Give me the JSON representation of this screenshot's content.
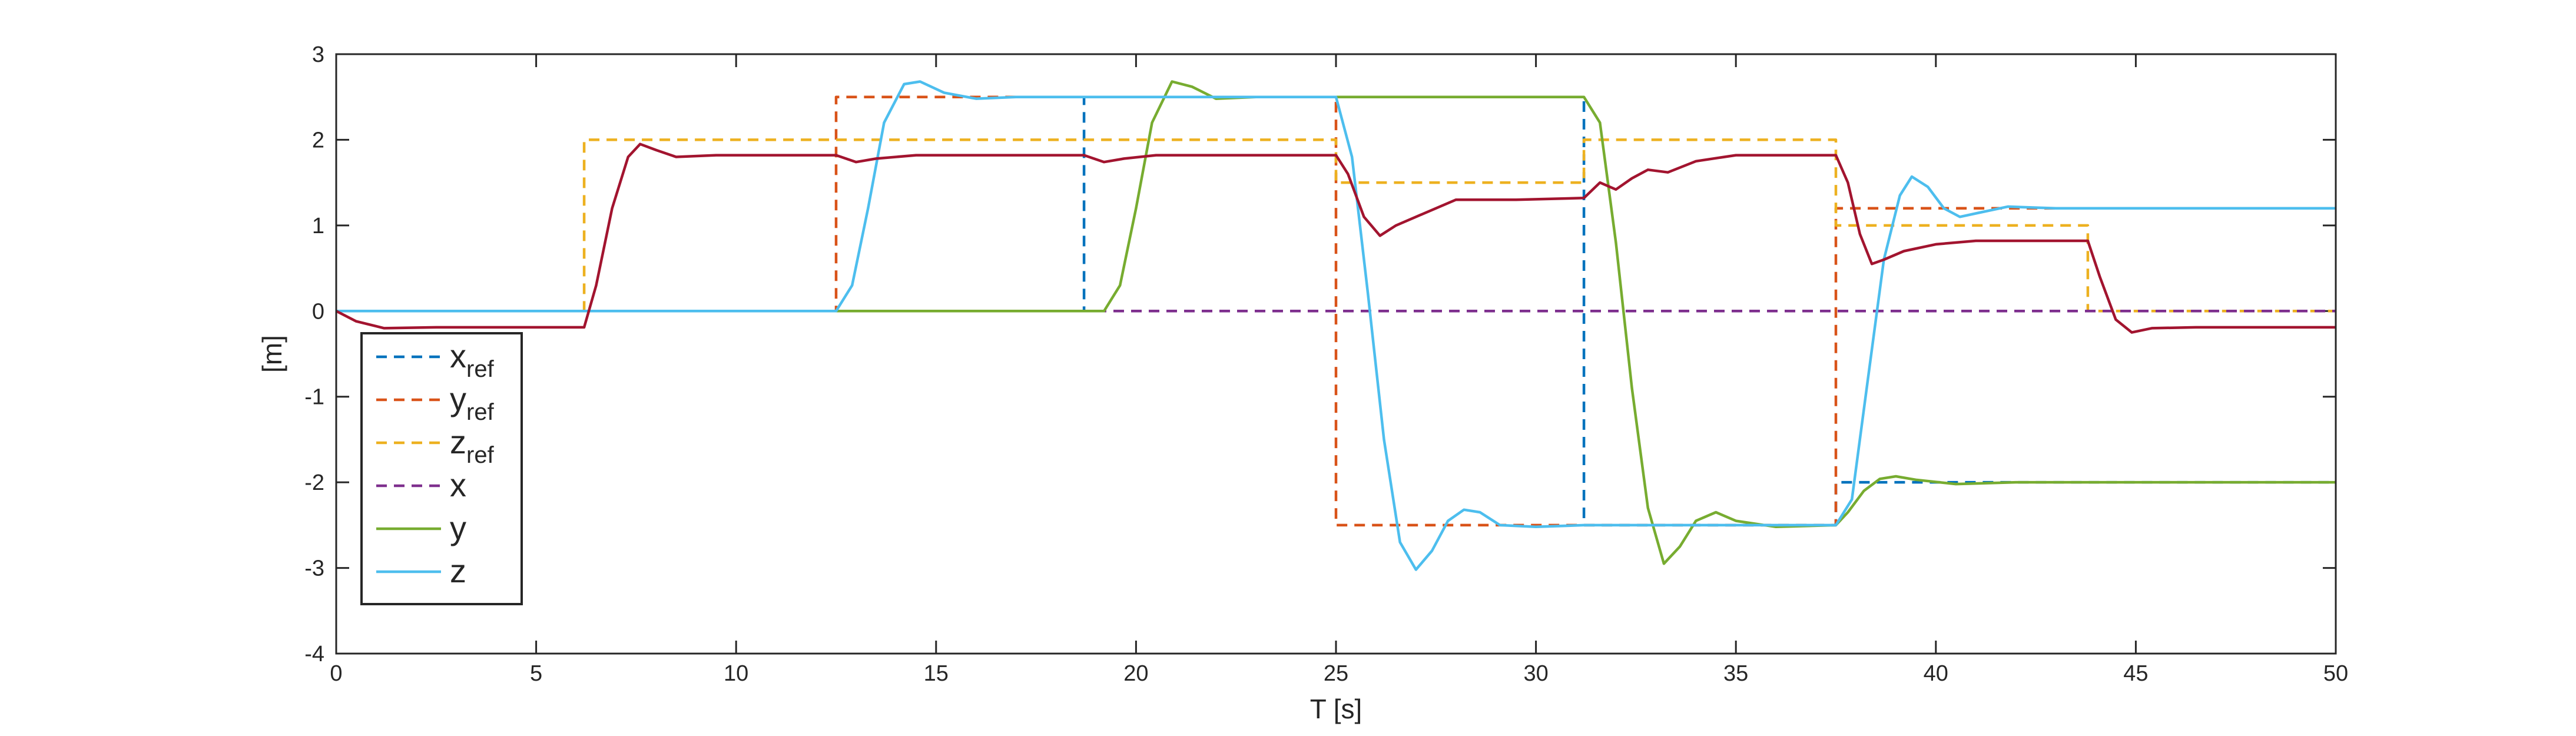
{
  "chart_data": {
    "type": "line",
    "title": "",
    "xlabel": "T [s]",
    "ylabel": "[m]",
    "xlim": [
      0,
      50
    ],
    "ylim": [
      -4,
      3
    ],
    "xticks": [
      0,
      5,
      10,
      15,
      20,
      25,
      30,
      35,
      40,
      45,
      50
    ],
    "yticks": [
      -4,
      -3,
      -2,
      -1,
      0,
      1,
      2,
      3
    ],
    "grid": false,
    "legend_placement": "lower-left",
    "legend": [
      {
        "base": "x",
        "sub": "ref",
        "color": "#0072BD",
        "dash": true
      },
      {
        "base": "y",
        "sub": "ref",
        "color": "#D95319",
        "dash": true
      },
      {
        "base": "z",
        "sub": "ref",
        "color": "#EDB120",
        "dash": true
      },
      {
        "base": "x",
        "sub": "",
        "color": "#7E2F8E",
        "dash": true
      },
      {
        "base": "y",
        "sub": "",
        "color": "#77AC30",
        "dash": false
      },
      {
        "base": "z",
        "sub": "",
        "color": "#4DBEEE",
        "dash": false
      }
    ],
    "series": [
      {
        "name": "x_ref",
        "color": "#0072BD",
        "dash": true,
        "points": [
          [
            0,
            0
          ],
          [
            18.7,
            0
          ],
          [
            18.7,
            2.5
          ],
          [
            25,
            2.5
          ],
          [
            31.2,
            2.5
          ],
          [
            31.2,
            -2.5
          ],
          [
            37.5,
            -2.5
          ],
          [
            37.5,
            -2.0
          ],
          [
            50,
            -2.0
          ]
        ]
      },
      {
        "name": "y_ref",
        "color": "#D95319",
        "dash": true,
        "points": [
          [
            0,
            0
          ],
          [
            12.5,
            0
          ],
          [
            12.5,
            2.5
          ],
          [
            25,
            2.5
          ],
          [
            25,
            -2.5
          ],
          [
            37.5,
            -2.5
          ],
          [
            37.5,
            1.2
          ],
          [
            50,
            1.2
          ]
        ]
      },
      {
        "name": "z_ref",
        "color": "#EDB120",
        "dash": true,
        "points": [
          [
            0,
            0
          ],
          [
            6.2,
            0
          ],
          [
            6.2,
            2.0
          ],
          [
            25,
            2.0
          ],
          [
            25,
            1.5
          ],
          [
            31.2,
            1.5
          ],
          [
            31.2,
            2.0
          ],
          [
            37.5,
            2.0
          ],
          [
            37.5,
            1.0
          ],
          [
            43.8,
            1.0
          ],
          [
            43.8,
            0
          ],
          [
            50,
            0
          ]
        ]
      },
      {
        "name": "x",
        "color": "#7E2F8E",
        "dash": true,
        "points": [
          [
            0,
            0
          ],
          [
            50,
            0
          ]
        ]
      },
      {
        "name": "y",
        "color": "#77AC30",
        "dash": false,
        "points": [
          [
            0,
            0
          ],
          [
            19.2,
            0
          ],
          [
            19.6,
            0.3
          ],
          [
            20.0,
            1.2
          ],
          [
            20.4,
            2.2
          ],
          [
            20.9,
            2.68
          ],
          [
            21.4,
            2.62
          ],
          [
            22,
            2.48
          ],
          [
            23,
            2.5
          ],
          [
            25,
            2.5
          ],
          [
            31.2,
            2.5
          ],
          [
            31.6,
            2.2
          ],
          [
            32.0,
            0.8
          ],
          [
            32.4,
            -0.9
          ],
          [
            32.8,
            -2.3
          ],
          [
            33.2,
            -2.95
          ],
          [
            33.6,
            -2.75
          ],
          [
            34.0,
            -2.45
          ],
          [
            34.5,
            -2.35
          ],
          [
            35,
            -2.45
          ],
          [
            36,
            -2.52
          ],
          [
            37.5,
            -2.5
          ],
          [
            37.8,
            -2.35
          ],
          [
            38.2,
            -2.1
          ],
          [
            38.6,
            -1.96
          ],
          [
            39.0,
            -1.93
          ],
          [
            39.5,
            -1.97
          ],
          [
            40.5,
            -2.02
          ],
          [
            42,
            -2.0
          ],
          [
            50,
            -2.0
          ]
        ]
      },
      {
        "name": "z",
        "color": "#4DBEEE",
        "dash": false,
        "points": [
          [
            0,
            0
          ],
          [
            12.5,
            0
          ],
          [
            12.9,
            0.3
          ],
          [
            13.3,
            1.2
          ],
          [
            13.7,
            2.2
          ],
          [
            14.2,
            2.65
          ],
          [
            14.6,
            2.68
          ],
          [
            15.2,
            2.55
          ],
          [
            16,
            2.48
          ],
          [
            17,
            2.5
          ],
          [
            25,
            2.5
          ],
          [
            25.4,
            1.8
          ],
          [
            25.8,
            0.2
          ],
          [
            26.2,
            -1.5
          ],
          [
            26.6,
            -2.7
          ],
          [
            27.0,
            -3.02
          ],
          [
            27.4,
            -2.8
          ],
          [
            27.8,
            -2.45
          ],
          [
            28.2,
            -2.32
          ],
          [
            28.6,
            -2.35
          ],
          [
            29.1,
            -2.5
          ],
          [
            30,
            -2.52
          ],
          [
            31.2,
            -2.5
          ],
          [
            37.5,
            -2.5
          ],
          [
            37.9,
            -2.2
          ],
          [
            38.3,
            -0.8
          ],
          [
            38.7,
            0.6
          ],
          [
            39.1,
            1.35
          ],
          [
            39.4,
            1.57
          ],
          [
            39.8,
            1.45
          ],
          [
            40.2,
            1.2
          ],
          [
            40.6,
            1.1
          ],
          [
            41.1,
            1.15
          ],
          [
            41.8,
            1.22
          ],
          [
            43,
            1.2
          ],
          [
            50,
            1.2
          ]
        ]
      },
      {
        "name": "x_actual",
        "color": "#A2142F",
        "dash": false,
        "points": [
          [
            0,
            0
          ],
          [
            0.5,
            -0.12
          ],
          [
            1.2,
            -0.2
          ],
          [
            2.5,
            -0.19
          ],
          [
            6.2,
            -0.19
          ],
          [
            6.5,
            0.3
          ],
          [
            6.9,
            1.2
          ],
          [
            7.3,
            1.8
          ],
          [
            7.6,
            1.95
          ],
          [
            8.0,
            1.88
          ],
          [
            8.5,
            1.8
          ],
          [
            9.5,
            1.82
          ],
          [
            11,
            1.82
          ],
          [
            12.5,
            1.82
          ],
          [
            13,
            1.74
          ],
          [
            13.5,
            1.78
          ],
          [
            14.5,
            1.82
          ],
          [
            18.7,
            1.82
          ],
          [
            19.2,
            1.74
          ],
          [
            19.7,
            1.78
          ],
          [
            20.5,
            1.82
          ],
          [
            25,
            1.82
          ],
          [
            25.3,
            1.6
          ],
          [
            25.7,
            1.1
          ],
          [
            26.1,
            0.88
          ],
          [
            26.5,
            1.0
          ],
          [
            27,
            1.1
          ],
          [
            28,
            1.3
          ],
          [
            29.5,
            1.3
          ],
          [
            31.2,
            1.32
          ],
          [
            31.6,
            1.5
          ],
          [
            32.0,
            1.42
          ],
          [
            32.4,
            1.55
          ],
          [
            32.8,
            1.65
          ],
          [
            33.3,
            1.62
          ],
          [
            34,
            1.75
          ],
          [
            35,
            1.82
          ],
          [
            37.5,
            1.82
          ],
          [
            37.8,
            1.5
          ],
          [
            38.1,
            0.9
          ],
          [
            38.4,
            0.55
          ],
          [
            38.7,
            0.6
          ],
          [
            39.2,
            0.7
          ],
          [
            40,
            0.78
          ],
          [
            41,
            0.82
          ],
          [
            43.8,
            0.82
          ],
          [
            44.1,
            0.4
          ],
          [
            44.5,
            -0.1
          ],
          [
            44.9,
            -0.25
          ],
          [
            45.4,
            -0.2
          ],
          [
            46.5,
            -0.19
          ],
          [
            50,
            -0.19
          ]
        ]
      }
    ]
  }
}
